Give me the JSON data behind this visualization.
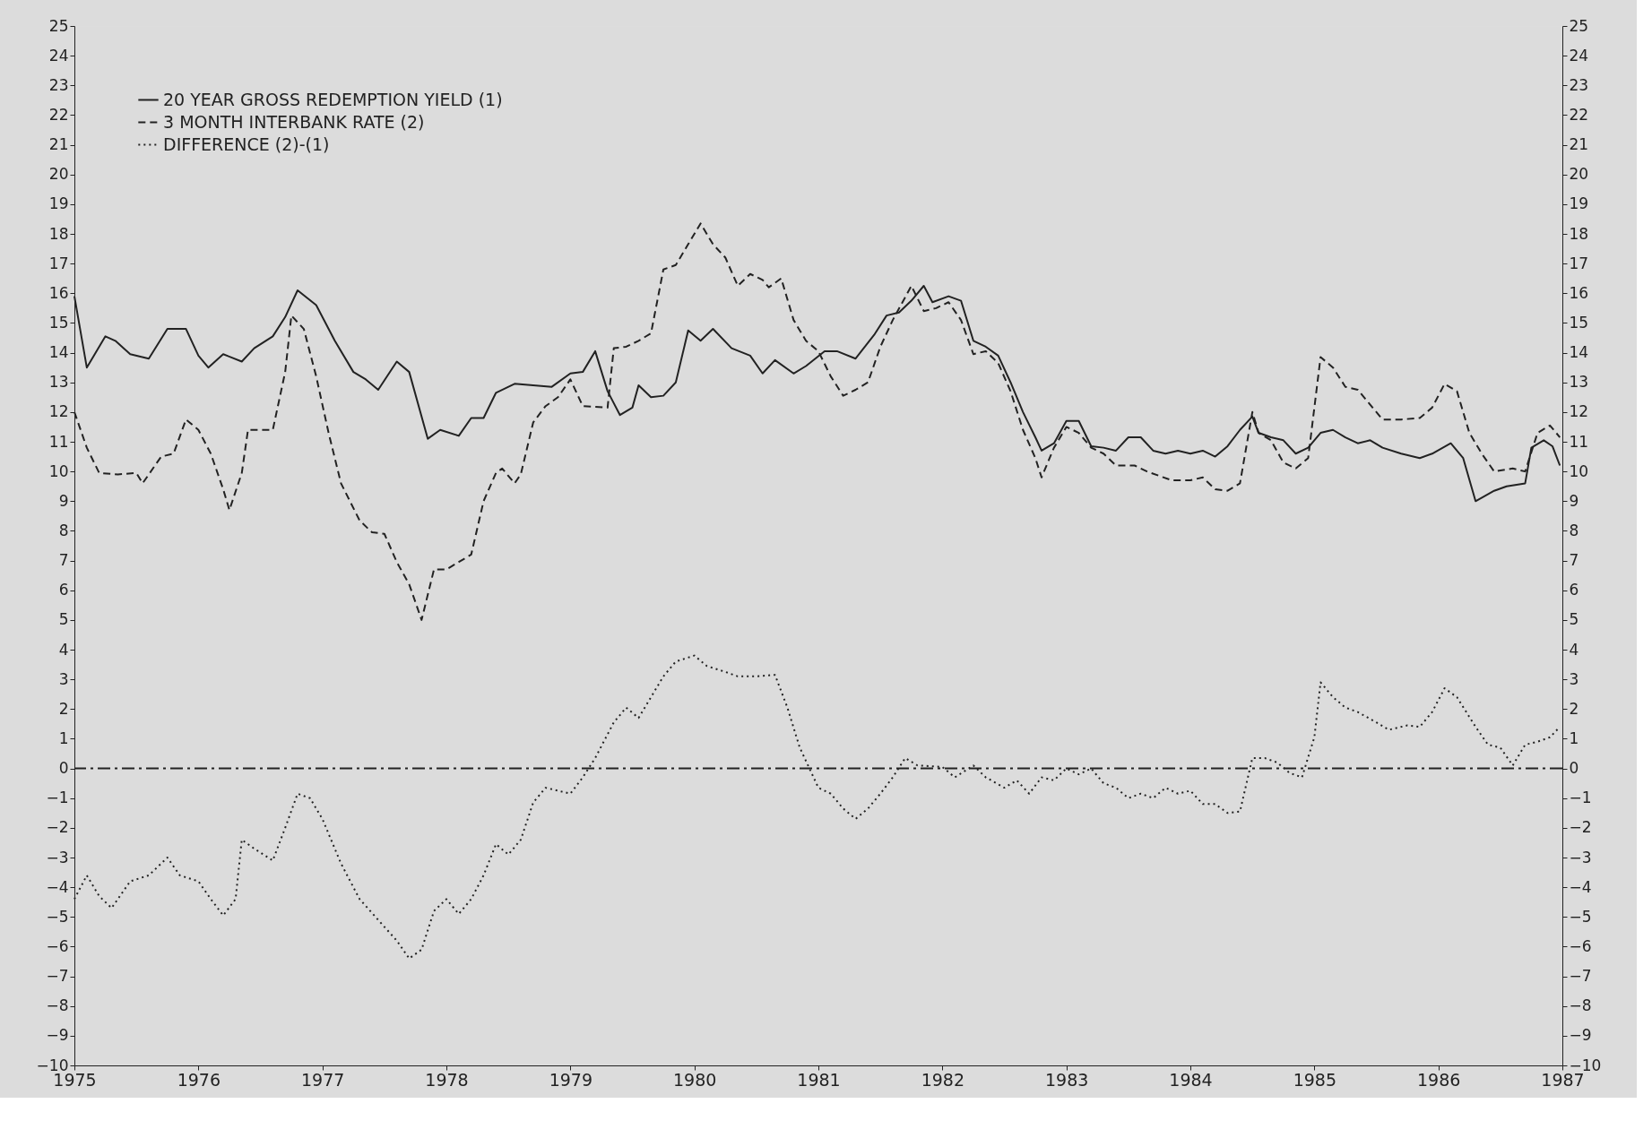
{
  "chart_data": {
    "type": "line",
    "xlim": [
      1975,
      1987
    ],
    "xticks": [
      1975,
      1976,
      1977,
      1978,
      1979,
      1980,
      1981,
      1982,
      1983,
      1984,
      1985,
      1986,
      1987
    ],
    "ylim": [
      -10,
      25
    ],
    "yticks": [
      -10,
      -9,
      -8,
      -7,
      -6,
      -5,
      -4,
      -3,
      -2,
      -1,
      0,
      1,
      2,
      3,
      4,
      5,
      6,
      7,
      8,
      9,
      10,
      11,
      12,
      13,
      14,
      15,
      16,
      17,
      18,
      19,
      20,
      21,
      22,
      23,
      24,
      25
    ],
    "y2lim": [
      -10,
      25
    ],
    "y2ticks": [
      -10,
      -9,
      -8,
      -7,
      -6,
      -5,
      -4,
      -3,
      -2,
      -1,
      0,
      1,
      2,
      3,
      4,
      5,
      6,
      7,
      8,
      9,
      10,
      11,
      12,
      13,
      14,
      15,
      16,
      17,
      18,
      19,
      20,
      21,
      22,
      23,
      24,
      25
    ],
    "grid": false,
    "legend": "top left",
    "marker": "none",
    "ref_lines": [
      {
        "axis": "y",
        "value": 0,
        "color": "#222222",
        "line_style": "dashed"
      }
    ],
    "series": [
      {
        "name": "20 YEAR GROSS REDEMPTION YIELD (1)",
        "color": "#222222",
        "line_style": "solid",
        "x": [
          1975.0,
          1975.1,
          1975.25,
          1975.33,
          1975.45,
          1975.6,
          1975.75,
          1975.9,
          1976.0,
          1976.08,
          1976.2,
          1976.35,
          1976.45,
          1976.6,
          1976.7,
          1976.8,
          1976.95,
          1977.1,
          1977.25,
          1977.35,
          1977.45,
          1977.6,
          1977.7,
          1977.85,
          1977.95,
          1978.1,
          1978.2,
          1978.3,
          1978.4,
          1978.55,
          1978.7,
          1978.85,
          1979.0,
          1979.1,
          1979.2,
          1979.3,
          1979.4,
          1979.5,
          1979.55,
          1979.65,
          1979.75,
          1979.85,
          1979.95,
          1980.05,
          1980.15,
          1980.3,
          1980.45,
          1980.55,
          1980.65,
          1980.8,
          1980.9,
          1981.05,
          1981.15,
          1981.3,
          1981.45,
          1981.55,
          1981.65,
          1981.75,
          1981.85,
          1981.92,
          1982.05,
          1982.15,
          1982.25,
          1982.35,
          1982.45,
          1982.55,
          1982.65,
          1982.75,
          1982.8,
          1982.9,
          1983.0,
          1983.1,
          1983.2,
          1983.3,
          1983.4,
          1983.5,
          1983.6,
          1983.7,
          1983.8,
          1983.9,
          1984.0,
          1984.1,
          1984.2,
          1984.3,
          1984.4,
          1984.5,
          1984.55,
          1984.65,
          1984.75,
          1984.85,
          1984.95,
          1985.05,
          1985.15,
          1985.25,
          1985.35,
          1985.45,
          1985.55,
          1985.7,
          1985.85,
          1985.95,
          1986.1,
          1986.2,
          1986.3,
          1986.45,
          1986.55,
          1986.7,
          1986.75,
          1986.85,
          1986.92,
          1986.98
        ],
        "values": [
          15.9,
          13.5,
          14.55,
          14.4,
          13.95,
          13.8,
          14.8,
          14.8,
          13.9,
          13.5,
          13.95,
          13.7,
          14.15,
          14.55,
          15.2,
          16.1,
          15.6,
          14.4,
          13.35,
          13.1,
          12.75,
          13.7,
          13.35,
          11.1,
          11.4,
          11.2,
          11.8,
          11.8,
          12.65,
          12.95,
          12.9,
          12.85,
          13.3,
          13.35,
          14.05,
          12.7,
          11.9,
          12.15,
          12.9,
          12.5,
          12.55,
          13.0,
          14.75,
          14.4,
          14.8,
          14.15,
          13.9,
          13.3,
          13.75,
          13.3,
          13.55,
          14.05,
          14.05,
          13.8,
          14.6,
          15.25,
          15.35,
          15.75,
          16.25,
          15.7,
          15.9,
          15.75,
          14.4,
          14.2,
          13.9,
          13.0,
          12.0,
          11.15,
          10.7,
          10.95,
          11.7,
          11.7,
          10.85,
          10.8,
          10.7,
          11.15,
          11.15,
          10.7,
          10.6,
          10.7,
          10.6,
          10.7,
          10.5,
          10.85,
          11.4,
          11.85,
          11.3,
          11.15,
          11.05,
          10.6,
          10.8,
          11.3,
          11.4,
          11.15,
          10.95,
          11.05,
          10.8,
          10.6,
          10.45,
          10.6,
          10.95,
          10.45,
          9.0,
          9.35,
          9.5,
          9.6,
          10.8,
          11.05,
          10.85,
          10.2
        ]
      },
      {
        "name": "3 MONTH INTERBANK RATE (2)",
        "color": "#222222",
        "line_style": "dashed",
        "x": [
          1975.0,
          1975.1,
          1975.2,
          1975.35,
          1975.5,
          1975.55,
          1975.7,
          1975.8,
          1975.9,
          1976.0,
          1976.1,
          1976.2,
          1976.25,
          1976.35,
          1976.4,
          1976.5,
          1976.6,
          1976.7,
          1976.75,
          1976.85,
          1976.95,
          1977.05,
          1977.15,
          1977.3,
          1977.4,
          1977.5,
          1977.6,
          1977.7,
          1977.8,
          1977.9,
          1978.0,
          1978.1,
          1978.2,
          1978.3,
          1978.4,
          1978.45,
          1978.55,
          1978.6,
          1978.7,
          1978.8,
          1978.9,
          1979.0,
          1979.1,
          1979.3,
          1979.35,
          1979.45,
          1979.55,
          1979.65,
          1979.75,
          1979.85,
          1979.95,
          1980.05,
          1980.15,
          1980.25,
          1980.35,
          1980.45,
          1980.55,
          1980.6,
          1980.7,
          1980.8,
          1980.9,
          1981.0,
          1981.1,
          1981.2,
          1981.3,
          1981.4,
          1981.5,
          1981.6,
          1981.75,
          1981.85,
          1981.95,
          1982.05,
          1982.15,
          1982.25,
          1982.35,
          1982.45,
          1982.55,
          1982.65,
          1982.75,
          1982.8,
          1982.9,
          1983.0,
          1983.1,
          1983.2,
          1983.3,
          1983.4,
          1983.55,
          1983.65,
          1983.75,
          1983.85,
          1984.0,
          1984.1,
          1984.2,
          1984.3,
          1984.4,
          1984.5,
          1984.55,
          1984.65,
          1984.75,
          1984.85,
          1984.95,
          1985.0,
          1985.05,
          1985.15,
          1985.25,
          1985.35,
          1985.45,
          1985.55,
          1985.7,
          1985.85,
          1985.95,
          1986.05,
          1986.15,
          1986.25,
          1986.35,
          1986.45,
          1986.6,
          1986.7,
          1986.8,
          1986.9,
          1986.98
        ],
        "values": [
          12.0,
          10.8,
          9.95,
          9.9,
          9.95,
          9.6,
          10.5,
          10.6,
          11.75,
          11.4,
          10.6,
          9.4,
          8.7,
          9.95,
          11.4,
          11.4,
          11.4,
          13.35,
          15.25,
          14.8,
          13.2,
          11.3,
          9.6,
          8.35,
          7.95,
          7.9,
          6.95,
          6.2,
          5.0,
          6.7,
          6.7,
          6.95,
          7.2,
          9.0,
          9.95,
          10.1,
          9.6,
          9.9,
          11.65,
          12.2,
          12.5,
          13.1,
          12.2,
          12.15,
          14.15,
          14.2,
          14.4,
          14.65,
          16.8,
          16.95,
          17.65,
          18.35,
          17.65,
          17.2,
          16.25,
          16.65,
          16.45,
          16.2,
          16.5,
          15.1,
          14.4,
          14.05,
          13.2,
          12.55,
          12.75,
          13.0,
          14.2,
          15.1,
          16.25,
          15.4,
          15.5,
          15.7,
          15.1,
          13.95,
          14.05,
          13.65,
          12.7,
          11.4,
          10.45,
          9.8,
          10.8,
          11.5,
          11.3,
          10.8,
          10.6,
          10.2,
          10.2,
          10.0,
          9.85,
          9.7,
          9.7,
          9.8,
          9.4,
          9.35,
          9.6,
          12.0,
          11.3,
          11.05,
          10.3,
          10.1,
          10.45,
          12.15,
          13.85,
          13.5,
          12.85,
          12.75,
          12.25,
          11.75,
          11.75,
          11.8,
          12.15,
          12.95,
          12.7,
          11.3,
          10.6,
          10.0,
          10.1,
          10.0,
          11.3,
          11.55,
          11.15
        ]
      },
      {
        "name": "DIFFERENCE (2)-(1)",
        "color": "#222222",
        "line_style": "dotted",
        "x": [
          1975.0,
          1975.1,
          1975.2,
          1975.3,
          1975.45,
          1975.6,
          1975.75,
          1975.85,
          1976.0,
          1976.1,
          1976.2,
          1976.3,
          1976.35,
          1976.45,
          1976.6,
          1976.7,
          1976.8,
          1976.9,
          1977.0,
          1977.15,
          1977.3,
          1977.45,
          1977.6,
          1977.7,
          1977.8,
          1977.9,
          1978.0,
          1978.1,
          1978.2,
          1978.3,
          1978.4,
          1978.5,
          1978.6,
          1978.7,
          1978.8,
          1979.0,
          1979.1,
          1979.2,
          1979.35,
          1979.45,
          1979.55,
          1979.65,
          1979.75,
          1979.85,
          1980.0,
          1980.1,
          1980.25,
          1980.35,
          1980.5,
          1980.65,
          1980.75,
          1980.85,
          1981.0,
          1981.1,
          1981.2,
          1981.3,
          1981.4,
          1981.5,
          1981.6,
          1981.7,
          1981.8,
          1982.0,
          1982.1,
          1982.25,
          1982.35,
          1982.5,
          1982.6,
          1982.7,
          1982.8,
          1982.9,
          1983.0,
          1983.1,
          1983.2,
          1983.3,
          1983.4,
          1983.5,
          1983.6,
          1983.7,
          1983.8,
          1983.9,
          1984.0,
          1984.1,
          1984.2,
          1984.3,
          1984.4,
          1984.5,
          1984.6,
          1984.7,
          1984.8,
          1984.9,
          1985.0,
          1985.05,
          1985.15,
          1985.25,
          1985.35,
          1985.5,
          1985.6,
          1985.75,
          1985.85,
          1985.95,
          1986.05,
          1986.15,
          1986.3,
          1986.4,
          1986.5,
          1986.6,
          1986.7,
          1986.8,
          1986.9,
          1986.98
        ],
        "values": [
          -4.4,
          -3.6,
          -4.3,
          -4.7,
          -3.8,
          -3.6,
          -3.0,
          -3.6,
          -3.8,
          -4.4,
          -4.95,
          -4.4,
          -2.4,
          -2.7,
          -3.1,
          -2.0,
          -0.85,
          -1.0,
          -1.7,
          -3.2,
          -4.4,
          -5.1,
          -5.8,
          -6.4,
          -6.1,
          -4.8,
          -4.4,
          -4.9,
          -4.4,
          -3.6,
          -2.55,
          -2.9,
          -2.4,
          -1.15,
          -0.65,
          -0.85,
          -0.3,
          0.35,
          1.55,
          2.05,
          1.7,
          2.4,
          3.1,
          3.6,
          3.8,
          3.45,
          3.25,
          3.1,
          3.1,
          3.15,
          2.05,
          0.7,
          -0.65,
          -0.85,
          -1.35,
          -1.7,
          -1.35,
          -0.85,
          -0.3,
          0.35,
          0.1,
          0.05,
          -0.3,
          0.1,
          -0.3,
          -0.65,
          -0.4,
          -0.85,
          -0.3,
          -0.4,
          0.0,
          -0.2,
          0.0,
          -0.5,
          -0.65,
          -1.0,
          -0.85,
          -1.0,
          -0.65,
          -0.85,
          -0.75,
          -1.2,
          -1.2,
          -1.5,
          -1.45,
          0.35,
          0.35,
          0.2,
          -0.15,
          -0.3,
          1.05,
          2.9,
          2.4,
          2.05,
          1.9,
          1.55,
          1.3,
          1.45,
          1.4,
          1.9,
          2.7,
          2.4,
          1.4,
          0.8,
          0.7,
          0.1,
          0.8,
          0.9,
          1.05,
          1.4
        ]
      }
    ]
  }
}
